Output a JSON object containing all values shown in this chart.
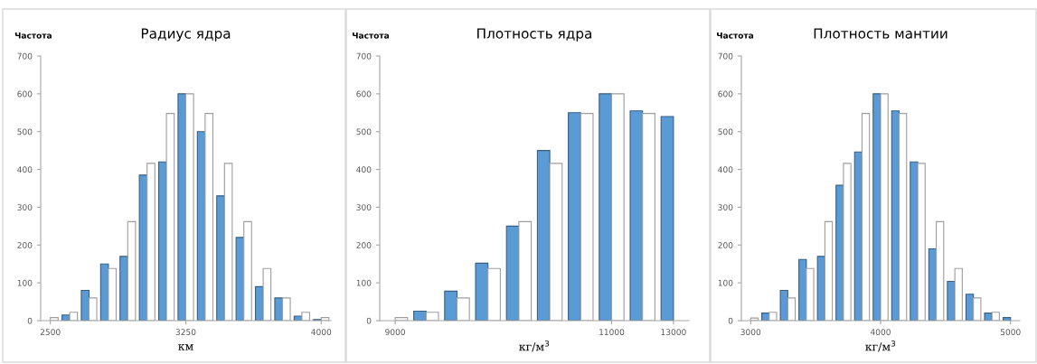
{
  "chart_data": [
    {
      "type": "bar",
      "title": "Радиус ядра",
      "ylabel": "Частота",
      "xlabel": "км",
      "categories": [
        "2500",
        null,
        null,
        null,
        null,
        null,
        null,
        "3250",
        null,
        null,
        null,
        null,
        null,
        null,
        "4000"
      ],
      "series": [
        {
          "color": "#5b9bd5",
          "values": [
            0,
            15,
            80,
            150,
            170,
            385,
            420,
            600,
            500,
            330,
            220,
            90,
            60,
            12,
            3
          ]
        },
        {
          "color": "#ffffff",
          "values": [
            8,
            22,
            60,
            138,
            262,
            416,
            548,
            600,
            548,
            416,
            262,
            138,
            60,
            22,
            8
          ]
        }
      ],
      "ylim": [
        0,
        700
      ],
      "yticks": [
        0,
        100,
        200,
        300,
        400,
        500,
        600,
        700
      ]
    },
    {
      "type": "bar",
      "title": "Плотность ядра",
      "ylabel": "Частота",
      "xlabel": "кг/м$^{3}$",
      "categories": [
        "9000",
        null,
        null,
        null,
        null,
        null,
        null,
        "11000",
        null,
        "13000"
      ],
      "series": [
        {
          "color": "#5b9bd5",
          "values": [
            0,
            25,
            78,
            152,
            250,
            450,
            550,
            600,
            555,
            540
          ]
        },
        {
          "color": "#ffffff",
          "values": [
            8,
            22,
            60,
            138,
            262,
            416,
            548,
            600,
            548,
            null
          ]
        }
      ],
      "ylim": [
        0,
        700
      ],
      "yticks": [
        0,
        100,
        200,
        300,
        400,
        500,
        600,
        700
      ]
    },
    {
      "type": "bar",
      "title": "Плотность мантии",
      "ylabel": "Частота",
      "xlabel": "кг/м$^{3}$",
      "categories": [
        "3000",
        null,
        null,
        null,
        null,
        null,
        null,
        "4000",
        null,
        null,
        null,
        null,
        null,
        null,
        "5000"
      ],
      "series": [
        {
          "color": "#5b9bd5",
          "values": [
            0,
            20,
            80,
            162,
            170,
            358,
            446,
            600,
            555,
            420,
            190,
            104,
            70,
            20,
            8
          ]
        },
        {
          "color": "#ffffff",
          "values": [
            7,
            22,
            60,
            138,
            262,
            416,
            548,
            600,
            548,
            416,
            262,
            138,
            60,
            22,
            null
          ]
        }
      ],
      "ylim": [
        0,
        700
      ],
      "yticks": [
        0,
        100,
        200,
        300,
        400,
        500,
        600,
        700
      ]
    }
  ]
}
